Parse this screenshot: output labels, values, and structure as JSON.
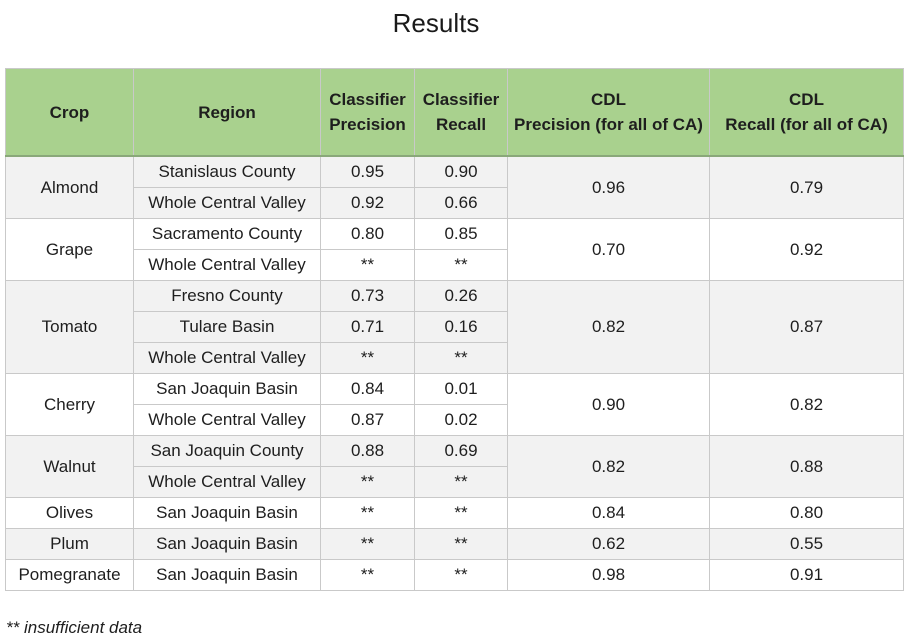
{
  "title": "Results",
  "headers": {
    "crop": "Crop",
    "region": "Region",
    "classifier_precision": [
      "Classifier",
      "Precision"
    ],
    "classifier_recall": [
      "Classifier",
      "Recall"
    ],
    "cdl_precision": [
      "CDL",
      "Precision (for all of CA)"
    ],
    "cdl_recall": [
      "CDL",
      "Recall (for all of CA)"
    ]
  },
  "groups": [
    {
      "crop": "Almond",
      "cdl_precision": "0.96",
      "cdl_recall": "0.79",
      "rows": [
        {
          "region": "Stanislaus County",
          "precision": "0.95",
          "recall": "0.90"
        },
        {
          "region": "Whole Central Valley",
          "precision": "0.92",
          "recall": "0.66"
        }
      ]
    },
    {
      "crop": "Grape",
      "cdl_precision": "0.70",
      "cdl_recall": "0.92",
      "rows": [
        {
          "region": "Sacramento County",
          "precision": "0.80",
          "recall": "0.85"
        },
        {
          "region": "Whole Central Valley",
          "precision": "**",
          "recall": "**"
        }
      ]
    },
    {
      "crop": "Tomato",
      "cdl_precision": "0.82",
      "cdl_recall": "0.87",
      "rows": [
        {
          "region": "Fresno County",
          "precision": "0.73",
          "recall": "0.26"
        },
        {
          "region": "Tulare Basin",
          "precision": "0.71",
          "recall": "0.16"
        },
        {
          "region": "Whole Central Valley",
          "precision": "**",
          "recall": "**"
        }
      ]
    },
    {
      "crop": "Cherry",
      "cdl_precision": "0.90",
      "cdl_recall": "0.82",
      "rows": [
        {
          "region": "San Joaquin Basin",
          "precision": "0.84",
          "recall": "0.01"
        },
        {
          "region": "Whole Central Valley",
          "precision": "0.87",
          "recall": "0.02"
        }
      ]
    },
    {
      "crop": "Walnut",
      "cdl_precision": "0.82",
      "cdl_recall": "0.88",
      "rows": [
        {
          "region": "San Joaquin County",
          "precision": "0.88",
          "recall": "0.69"
        },
        {
          "region": "Whole Central Valley",
          "precision": "**",
          "recall": "**"
        }
      ]
    },
    {
      "crop": "Olives",
      "cdl_precision": "0.84",
      "cdl_recall": "0.80",
      "rows": [
        {
          "region": "San Joaquin Basin",
          "precision": "**",
          "recall": "**"
        }
      ]
    },
    {
      "crop": "Plum",
      "cdl_precision": "0.62",
      "cdl_recall": "0.55",
      "rows": [
        {
          "region": "San Joaquin Basin",
          "precision": "**",
          "recall": "**"
        }
      ]
    },
    {
      "crop": "Pomegranate",
      "cdl_precision": "0.98",
      "cdl_recall": "0.91",
      "rows": [
        {
          "region": "San Joaquin Basin",
          "precision": "**",
          "recall": "**"
        }
      ]
    }
  ],
  "footnote": {
    "marker": "**",
    "text": "insufficient data"
  },
  "colors": {
    "header_bg": "#a9d18e",
    "shaded_row_bg": "#f2f2f2",
    "plain_row_bg": "#ffffff",
    "border": "#c9c9c9"
  }
}
